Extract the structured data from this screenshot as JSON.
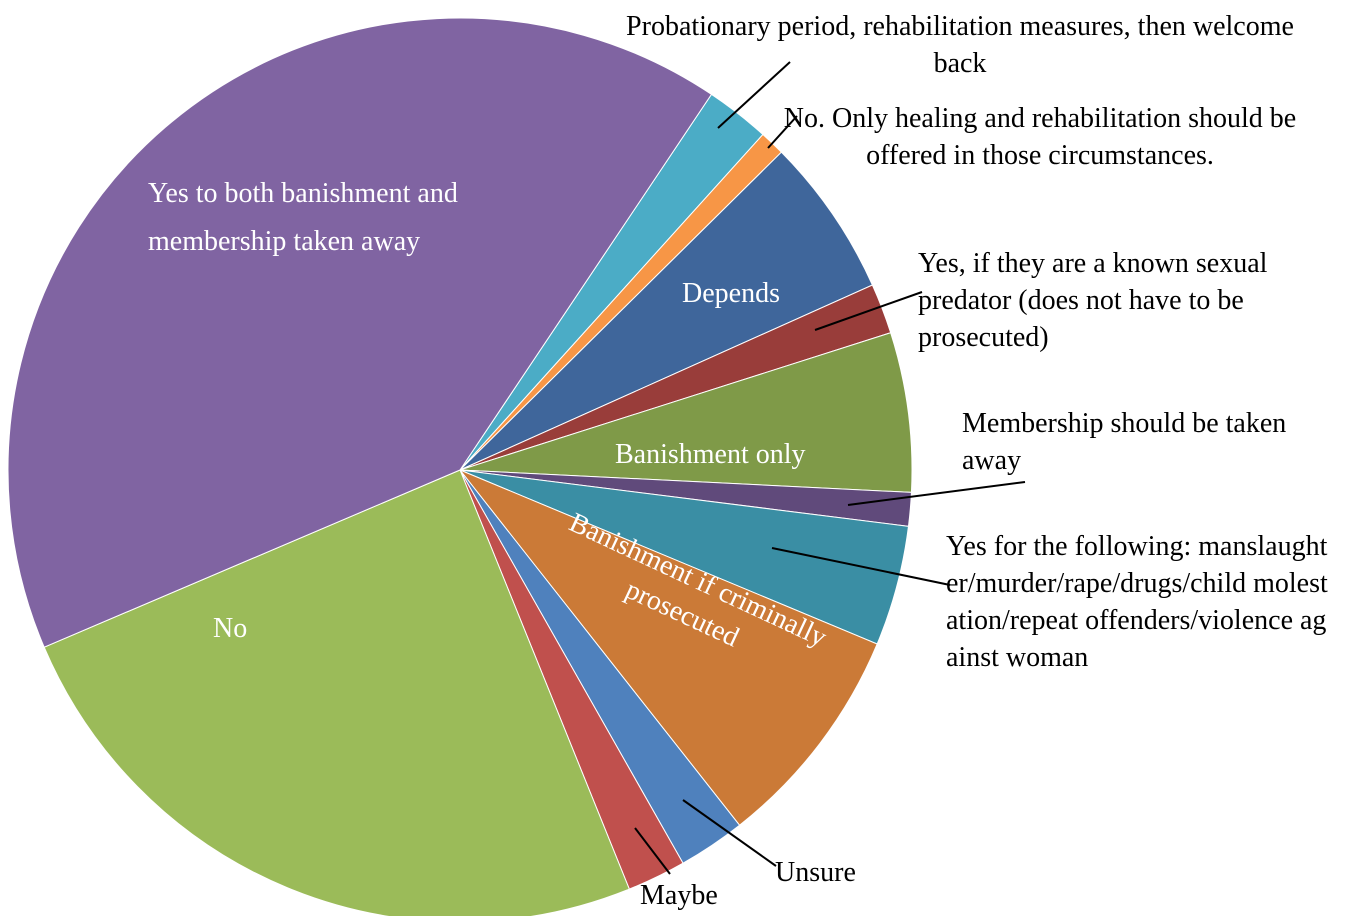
{
  "chart_data": {
    "type": "pie",
    "categories": [
      "Probationary period, rehabilitation measures, then welcome back",
      "No. Only healing and rehabilitation should be offered in those circumstances.",
      "Depends",
      "Yes, if they are a known sexual predator (does not have to be prosecuted)",
      "Banishment only",
      "Membership should be taken away",
      "Yes for the following: manslaughter/murder/rape/drugs/child molestation/repeat offenders/violence against woman",
      "Banishment if criminally prosecuted",
      "Unsure",
      "Maybe",
      "No",
      "Yes to both banishment and membership taken away"
    ],
    "values": [
      2.3,
      0.9,
      5.7,
      1.8,
      5.7,
      1.2,
      4.3,
      8.1,
      2.4,
      2.1,
      24.7,
      40.8
    ],
    "colors": [
      "#4bacc6",
      "#f79646",
      "#3f669b",
      "#993d3a",
      "#7f9a48",
      "#604a7b",
      "#3a8ea4",
      "#cb7a37",
      "#4f81bd",
      "#c0504d",
      "#9bbb59",
      "#8064a2"
    ]
  }
}
